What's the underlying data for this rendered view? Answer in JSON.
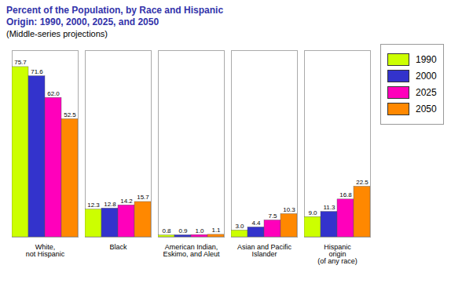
{
  "chart_data": {
    "type": "bar",
    "title": "Percent of the Population, by Race and Hispanic\nOrigin:  1990, 2000, 2025, and 2050",
    "subtitle": "(Middle-series projections)",
    "categories": [
      "White,\nnot Hispanic",
      "Black",
      "American Indian,\nEskimo, and Aleut",
      "Asian and Pacific\nIslander",
      "Hispanic\norigin\n(of any race)"
    ],
    "series": [
      {
        "name": "1990",
        "color": "#ccff00",
        "values": [
          75.7,
          12.3,
          0.8,
          3.0,
          9.0
        ],
        "value_labels": [
          "75.7",
          "12.3",
          "0.8",
          "3.0",
          "9.0"
        ]
      },
      {
        "name": "2000",
        "color": "#3333cc",
        "values": [
          71.6,
          12.8,
          0.9,
          4.4,
          11.3
        ],
        "value_labels": [
          "71.6",
          "12.8",
          "0.9",
          "4.4",
          "11.3"
        ]
      },
      {
        "name": "2025",
        "color": "#ff00bb",
        "values": [
          62.0,
          14.2,
          1.0,
          7.5,
          16.8
        ],
        "value_labels": [
          "62.0",
          "14.2",
          "1.0",
          "7.5",
          "16.8"
        ]
      },
      {
        "name": "2050",
        "color": "#ff8800",
        "values": [
          52.5,
          15.7,
          1.1,
          10.3,
          22.5
        ],
        "value_labels": [
          "52.5",
          "15.7",
          "1.1",
          "10.3",
          "22.5"
        ]
      }
    ],
    "ylim": [
      0,
      83
    ],
    "data_labels": true,
    "tick_labels": "x",
    "grid": false,
    "legend": "upper right"
  }
}
